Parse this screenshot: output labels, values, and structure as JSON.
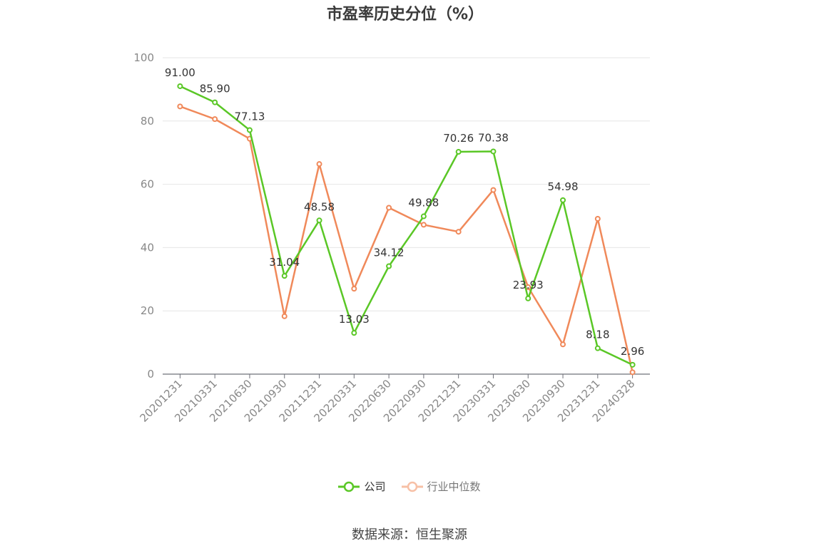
{
  "chart_data": {
    "type": "line",
    "title": "市盈率历史分位（%）",
    "categories": [
      "20201231",
      "20210331",
      "20210630",
      "20210930",
      "20211231",
      "20220331",
      "20220630",
      "20220930",
      "20221231",
      "20230331",
      "20230630",
      "20230930",
      "20231231",
      "20240328"
    ],
    "ylim": [
      0,
      100
    ],
    "yticks": [
      "0",
      "20",
      "40",
      "60",
      "80",
      "100"
    ],
    "grid": true,
    "legend_position": "bottom",
    "series": [
      {
        "name": "公司",
        "color": "#5ac726",
        "values": [
          91.0,
          85.9,
          77.13,
          31.04,
          48.58,
          13.03,
          34.12,
          49.88,
          70.26,
          70.38,
          23.93,
          54.98,
          8.18,
          2.96
        ],
        "labels": [
          "91.00",
          "85.90",
          "77.13",
          "31.04",
          "48.58",
          "13.03",
          "34.12",
          "49.88",
          "70.26",
          "70.38",
          "23.93",
          "54.98",
          "8.18",
          "2.96"
        ]
      },
      {
        "name": "行业中位数",
        "color": "#f0895a",
        "values": [
          84.6,
          80.6,
          74.4,
          18.3,
          66.4,
          27.0,
          52.6,
          47.2,
          45.0,
          58.2,
          27.5,
          9.4,
          49.1,
          0.6
        ]
      }
    ]
  },
  "source": "数据来源：恒生聚源"
}
